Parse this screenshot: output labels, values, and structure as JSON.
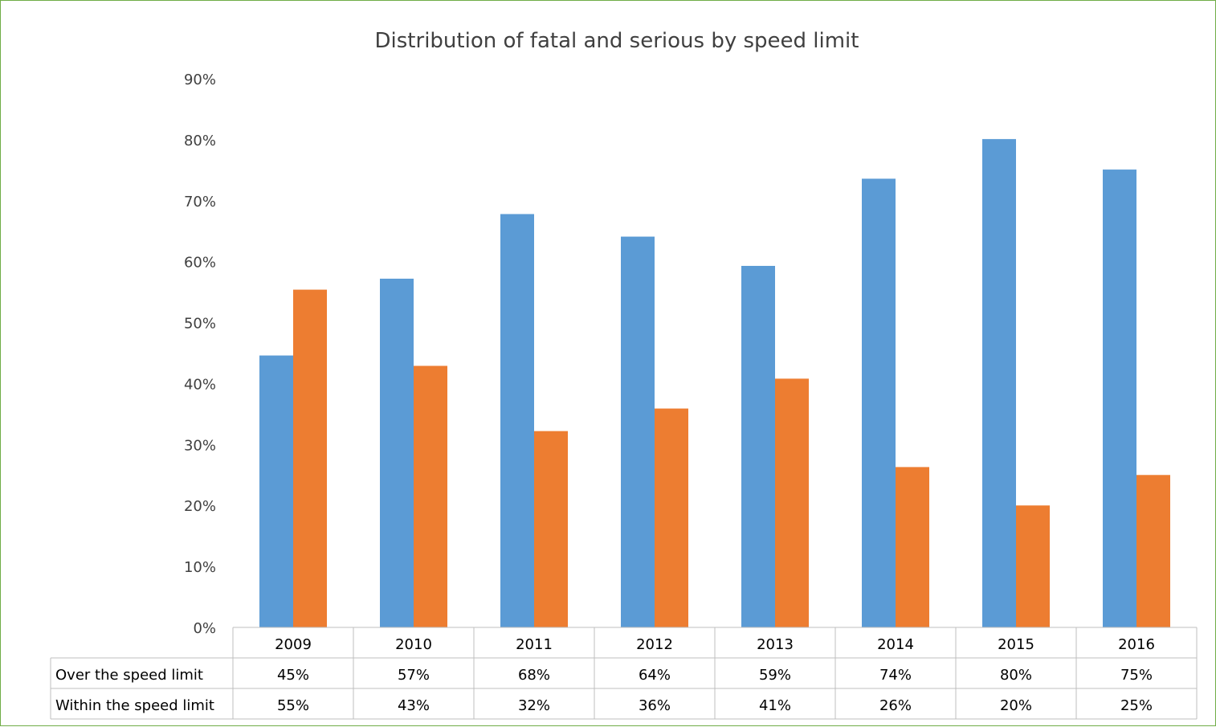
{
  "chart_data": {
    "type": "bar",
    "title": "Distribution of fatal and serious by speed limit",
    "categories": [
      "2009",
      "2010",
      "2011",
      "2012",
      "2013",
      "2014",
      "2015",
      "2016"
    ],
    "series": [
      {
        "name": "Over the speed limit",
        "color": "#5b9bd5",
        "values": [
          44.6,
          57.2,
          67.8,
          64.1,
          59.3,
          73.6,
          80.1,
          75.1
        ],
        "labels": [
          "45%",
          "57%",
          "68%",
          "64%",
          "59%",
          "74%",
          "80%",
          "75%"
        ]
      },
      {
        "name": "Within the speed limit",
        "color": "#ed7d31",
        "values": [
          55.4,
          42.9,
          32.2,
          35.9,
          40.8,
          26.3,
          20.0,
          25.0
        ],
        "labels": [
          "55%",
          "43%",
          "32%",
          "36%",
          "41%",
          "26%",
          "20%",
          "25%"
        ]
      }
    ],
    "ylim": [
      0,
      90
    ],
    "yticks": [
      "0%",
      "10%",
      "20%",
      "30%",
      "40%",
      "50%",
      "60%",
      "70%",
      "80%",
      "90%"
    ],
    "grid": false,
    "legend": "data-table"
  }
}
